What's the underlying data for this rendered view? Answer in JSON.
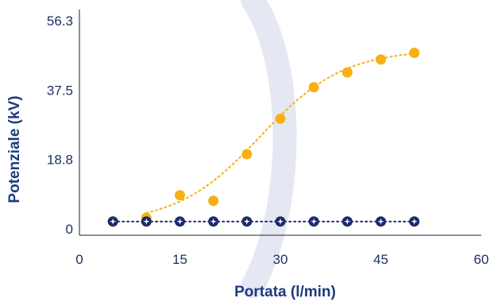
{
  "chart_data": {
    "type": "scatter",
    "title": "",
    "xlabel": "Portata (l/min)",
    "ylabel": "Potenziale (kV)",
    "xlim": [
      0,
      60
    ],
    "ylim": [
      0,
      56.3
    ],
    "x_ticks": [
      {
        "value": 0,
        "label": "0"
      },
      {
        "value": 15,
        "label": "15"
      },
      {
        "value": 30,
        "label": "30"
      },
      {
        "value": 45,
        "label": "45"
      },
      {
        "value": 60,
        "label": "60"
      }
    ],
    "y_ticks": [
      {
        "value": 0,
        "label": "0"
      },
      {
        "value": 18.8,
        "label": "18.8"
      },
      {
        "value": 37.5,
        "label": "37.5"
      },
      {
        "value": 56.3,
        "label": "56.3"
      }
    ],
    "grid": false,
    "legend": false,
    "series": [
      {
        "color": "#f6b012",
        "marker": "circle",
        "trendline": "dotted",
        "x": [
          5,
          10,
          15,
          20,
          25,
          30,
          35,
          40,
          45,
          50
        ],
        "y": [
          2.0,
          3.0,
          9.1,
          7.6,
          20.2,
          29.8,
          38.3,
          42.3,
          45.8,
          47.6
        ]
      },
      {
        "color": "#1b2a6b",
        "marker": "circle-star",
        "trendline": "dotted",
        "x": [
          5,
          10,
          15,
          20,
          25,
          30,
          35,
          40,
          45,
          50
        ],
        "y": [
          2.0,
          2.0,
          2.0,
          2.0,
          2.0,
          2.0,
          2.0,
          2.0,
          2.0,
          2.0
        ]
      }
    ]
  }
}
